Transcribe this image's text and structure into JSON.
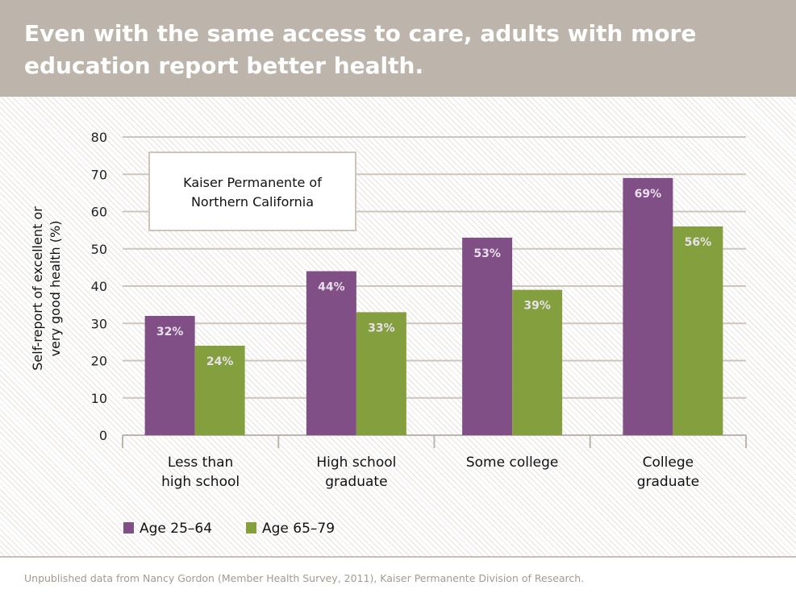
{
  "header": {
    "title": "Even with the same access to care, adults with more education report better health."
  },
  "footer": {
    "source": "Unpublished data from Nancy Gordon (Member Health Survey, 2011), Kaiser Permanente Division of Research."
  },
  "chart_data": {
    "type": "bar",
    "title": "Even with the same access to care, adults with more education report better health.",
    "annotation": "Kaiser Permanente of Northern California",
    "ylabel": "Self-report of excellent or very good health (%)",
    "ylabel_lines": [
      "Self-report of excellent or",
      "very good health (%)"
    ],
    "xlabel": "",
    "ylim": [
      0,
      80
    ],
    "yticks": [
      0,
      10,
      20,
      30,
      40,
      50,
      60,
      70,
      80
    ],
    "grid": true,
    "legend_placement": "bottom-left",
    "categories": [
      [
        "Less than",
        "high school"
      ],
      [
        "High school",
        "graduate"
      ],
      [
        "Some college"
      ],
      [
        "College",
        "graduate"
      ]
    ],
    "series": [
      {
        "name": "Age 25–64",
        "color": "#7f4f86",
        "values": [
          32,
          44,
          53,
          69
        ],
        "labels": [
          "32%",
          "44%",
          "53%",
          "69%"
        ]
      },
      {
        "name": "Age 65–79",
        "color": "#84a03e",
        "values": [
          24,
          33,
          39,
          56
        ],
        "labels": [
          "24%",
          "33%",
          "39%",
          "56%"
        ]
      }
    ]
  }
}
